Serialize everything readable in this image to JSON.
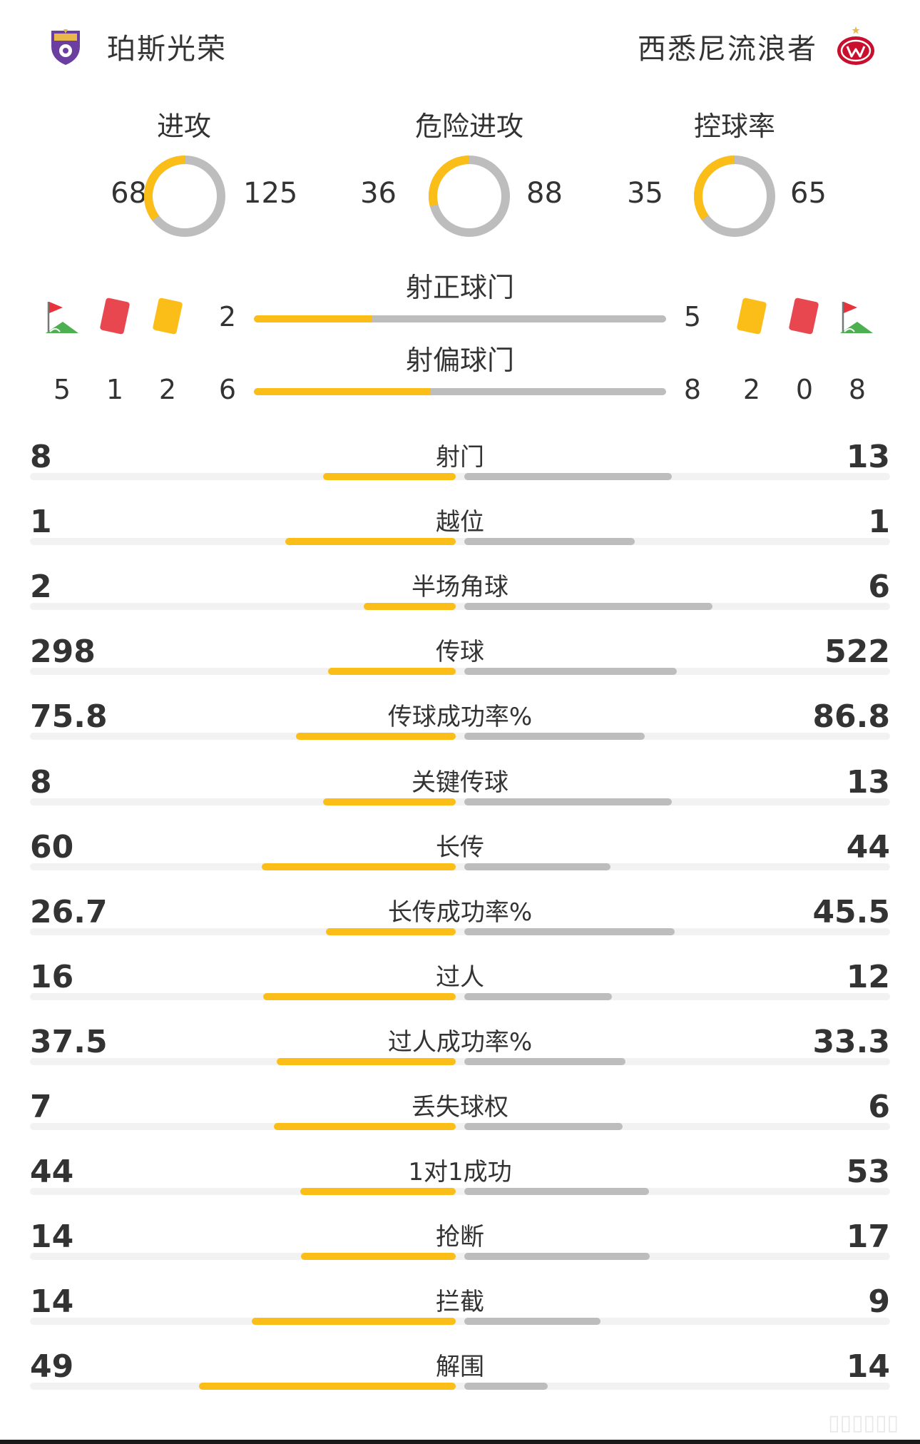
{
  "teams": {
    "home": {
      "name": "珀斯光荣",
      "logo_icon": "perth-glory-logo-icon",
      "color": "#6b3fa0"
    },
    "away": {
      "name": "西悉尼流浪者",
      "logo_icon": "western-sydney-wanderers-logo-icon",
      "color": "#c8102e"
    }
  },
  "colors": {
    "home_bar": "#fbbd18",
    "away_bar": "#bdbdbd",
    "track": "#f2f2f2"
  },
  "donuts": [
    {
      "title": "进攻",
      "home": 68,
      "away": 125
    },
    {
      "title": "危险进攻",
      "home": 36,
      "away": 88
    },
    {
      "title": "控球率",
      "home": 35,
      "away": 65
    }
  ],
  "shots": {
    "on_target": {
      "title": "射正球门",
      "home": 2,
      "away": 5
    },
    "off_target": {
      "title": "射偏球门",
      "home": 6,
      "away": 8
    }
  },
  "cards": {
    "home": {
      "corners": 5,
      "red": 1,
      "yellow": 2
    },
    "away": {
      "yellow": 2,
      "red": 0,
      "corners": 8
    }
  },
  "stats": [
    {
      "label": "射门",
      "home": "8",
      "away": "13",
      "home_val": 8,
      "away_val": 13
    },
    {
      "label": "越位",
      "home": "1",
      "away": "1",
      "home_val": 1,
      "away_val": 1
    },
    {
      "label": "半场角球",
      "home": "2",
      "away": "6",
      "home_val": 2,
      "away_val": 6
    },
    {
      "label": "传球",
      "home": "298",
      "away": "522",
      "home_val": 298,
      "away_val": 522
    },
    {
      "label": "传球成功率%",
      "home": "75.8",
      "away": "86.8",
      "home_val": 75.8,
      "away_val": 86.8
    },
    {
      "label": "关键传球",
      "home": "8",
      "away": "13",
      "home_val": 8,
      "away_val": 13
    },
    {
      "label": "长传",
      "home": "60",
      "away": "44",
      "home_val": 60,
      "away_val": 44
    },
    {
      "label": "长传成功率%",
      "home": "26.7",
      "away": "45.5",
      "home_val": 26.7,
      "away_val": 45.5
    },
    {
      "label": "过人",
      "home": "16",
      "away": "12",
      "home_val": 16,
      "away_val": 12
    },
    {
      "label": "过人成功率%",
      "home": "37.5",
      "away": "33.3",
      "home_val": 37.5,
      "away_val": 33.3
    },
    {
      "label": "丢失球权",
      "home": "7",
      "away": "6",
      "home_val": 7,
      "away_val": 6
    },
    {
      "label": "1对1成功",
      "home": "44",
      "away": "53",
      "home_val": 44,
      "away_val": 53
    },
    {
      "label": "抢断",
      "home": "14",
      "away": "17",
      "home_val": 14,
      "away_val": 17
    },
    {
      "label": "拦截",
      "home": "14",
      "away": "9",
      "home_val": 14,
      "away_val": 9
    },
    {
      "label": "解围",
      "home": "49",
      "away": "14",
      "home_val": 49,
      "away_val": 14
    }
  ]
}
